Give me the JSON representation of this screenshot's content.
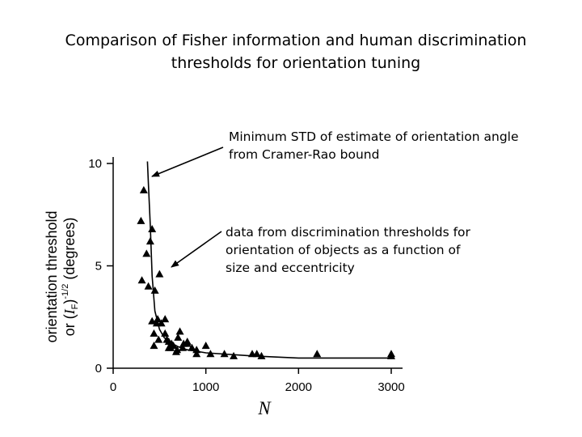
{
  "slide": {
    "title_line1": "Comparison of Fisher information and human discrimination",
    "title_line2": "thresholds for orientation tuning"
  },
  "annotations": [
    {
      "lines": [
        "Minimum STD of estimate of orientation angle",
        "from Cramer-Rao bound"
      ]
    },
    {
      "lines": [
        "data from discrimination thresholds for",
        "orientation of objects as a function of",
        "size and eccentricity"
      ]
    }
  ],
  "chart_data": {
    "type": "scatter",
    "xlabel": "N",
    "ylabel_line1": "orientation threshold",
    "ylabel_line2_pre": "or (",
    "ylabel_I": "I",
    "ylabel_F": "F",
    "ylabel_line2_post": ")",
    "ylabel_exp": "-1/2",
    "ylabel_units": "(degrees)",
    "xlim": [
      0,
      3100
    ],
    "ylim": [
      0,
      10
    ],
    "xticks": [
      0,
      1000,
      2000,
      3000
    ],
    "xtick_labels": [
      "0",
      "1000",
      "2000",
      "3000"
    ],
    "yticks": [
      0,
      5,
      10
    ],
    "ytick_labels": [
      "0",
      "5",
      "10"
    ],
    "grid": false,
    "series": [
      {
        "marker": "triangle",
        "x": [
          300,
          330,
          360,
          400,
          310,
          420,
          380,
          450,
          500,
          420,
          440,
          470,
          480,
          560,
          520,
          560,
          580,
          600,
          630,
          650,
          700,
          720,
          750,
          800,
          850,
          900,
          680,
          900,
          1000,
          1050,
          1200,
          1300,
          1500,
          1550,
          1600,
          2200,
          3000,
          3000,
          440,
          490,
          600,
          620,
          690,
          760,
          800
        ],
        "y": [
          7.2,
          8.7,
          5.6,
          6.2,
          4.3,
          6.8,
          4.0,
          3.8,
          4.6,
          2.3,
          1.7,
          2.2,
          2.4,
          2.4,
          2.2,
          1.7,
          1.4,
          1.3,
          1.2,
          1.1,
          1.5,
          1.8,
          1.0,
          1.3,
          1.0,
          0.9,
          0.8,
          0.7,
          1.1,
          0.7,
          0.7,
          0.6,
          0.7,
          0.7,
          0.6,
          0.7,
          0.7,
          0.6,
          1.1,
          1.4,
          1.0,
          1.0,
          0.9,
          1.2,
          1.2
        ]
      },
      {
        "name": "Cramer-Rao bound",
        "type": "line",
        "x": [
          370,
          380,
          400,
          420,
          450,
          500,
          550,
          600,
          700,
          800,
          1000,
          1500,
          2000,
          2500,
          3000
        ],
        "y": [
          10.1,
          9.0,
          7.0,
          4.5,
          2.8,
          1.9,
          1.5,
          1.3,
          1.05,
          0.9,
          0.75,
          0.6,
          0.5,
          0.5,
          0.5
        ]
      }
    ]
  }
}
